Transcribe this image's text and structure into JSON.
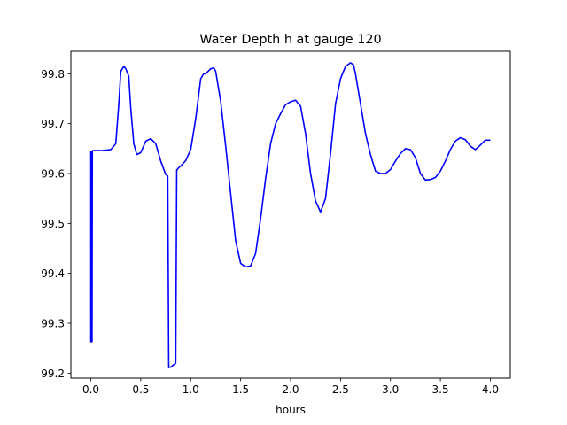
{
  "chart_data": {
    "type": "line",
    "title": "Water Depth h at gauge 120",
    "xlabel": "hours",
    "ylabel": "",
    "xlim": [
      -0.2,
      4.2
    ],
    "ylim": [
      99.19,
      99.845
    ],
    "xticks": [
      0.0,
      0.5,
      1.0,
      1.5,
      2.0,
      2.5,
      3.0,
      3.5,
      4.0
    ],
    "xtick_labels": [
      "0.0",
      "0.5",
      "1.0",
      "1.5",
      "2.0",
      "2.5",
      "3.0",
      "3.5",
      "4.0"
    ],
    "yticks": [
      99.2,
      99.3,
      99.4,
      99.5,
      99.6,
      99.7,
      99.8
    ],
    "ytick_labels": [
      "99.2",
      "99.3",
      "99.4",
      "99.5",
      "99.6",
      "99.7",
      "99.8"
    ],
    "grid": false,
    "series": [
      {
        "color": "#0000ff",
        "x": [
          0.0,
          0.0,
          0.005,
          0.01,
          0.012,
          0.015,
          0.02,
          0.1,
          0.2,
          0.25,
          0.28,
          0.3,
          0.33,
          0.35,
          0.38,
          0.4,
          0.43,
          0.46,
          0.5,
          0.55,
          0.6,
          0.65,
          0.7,
          0.75,
          0.77,
          0.78,
          0.785,
          0.8,
          0.85,
          0.86,
          0.88,
          0.9,
          0.95,
          1.0,
          1.05,
          1.1,
          1.13,
          1.15,
          1.2,
          1.23,
          1.25,
          1.3,
          1.35,
          1.4,
          1.45,
          1.5,
          1.55,
          1.6,
          1.65,
          1.7,
          1.75,
          1.8,
          1.85,
          1.9,
          1.95,
          2.0,
          2.05,
          2.1,
          2.15,
          2.2,
          2.25,
          2.3,
          2.35,
          2.4,
          2.45,
          2.5,
          2.55,
          2.6,
          2.63,
          2.65,
          2.7,
          2.75,
          2.8,
          2.85,
          2.9,
          2.95,
          3.0,
          3.05,
          3.1,
          3.15,
          3.2,
          3.25,
          3.3,
          3.35,
          3.4,
          3.45,
          3.5,
          3.55,
          3.6,
          3.65,
          3.7,
          3.75,
          3.8,
          3.85,
          3.9,
          3.95,
          4.0
        ],
        "y": [
          99.645,
          99.263,
          99.263,
          99.645,
          99.263,
          99.645,
          99.646,
          99.646,
          99.648,
          99.66,
          99.74,
          99.805,
          99.815,
          99.81,
          99.795,
          99.73,
          99.66,
          99.638,
          99.642,
          99.665,
          99.67,
          99.66,
          99.625,
          99.598,
          99.595,
          99.211,
          99.212,
          99.212,
          99.22,
          99.607,
          99.612,
          99.615,
          99.626,
          99.648,
          99.71,
          99.79,
          99.8,
          99.8,
          99.81,
          99.812,
          99.805,
          99.745,
          99.655,
          99.56,
          99.465,
          99.42,
          99.413,
          99.415,
          99.44,
          99.51,
          99.59,
          99.66,
          99.7,
          99.72,
          99.738,
          99.744,
          99.747,
          99.735,
          99.68,
          99.6,
          99.545,
          99.523,
          99.55,
          99.64,
          99.74,
          99.79,
          99.815,
          99.822,
          99.818,
          99.8,
          99.74,
          99.68,
          99.638,
          99.605,
          99.6,
          99.6,
          99.608,
          99.625,
          99.64,
          99.65,
          99.648,
          99.632,
          99.6,
          99.587,
          99.588,
          99.592,
          99.605,
          99.625,
          99.648,
          99.665,
          99.672,
          99.668,
          99.655,
          99.648,
          99.657,
          99.667,
          99.667
        ]
      }
    ]
  }
}
